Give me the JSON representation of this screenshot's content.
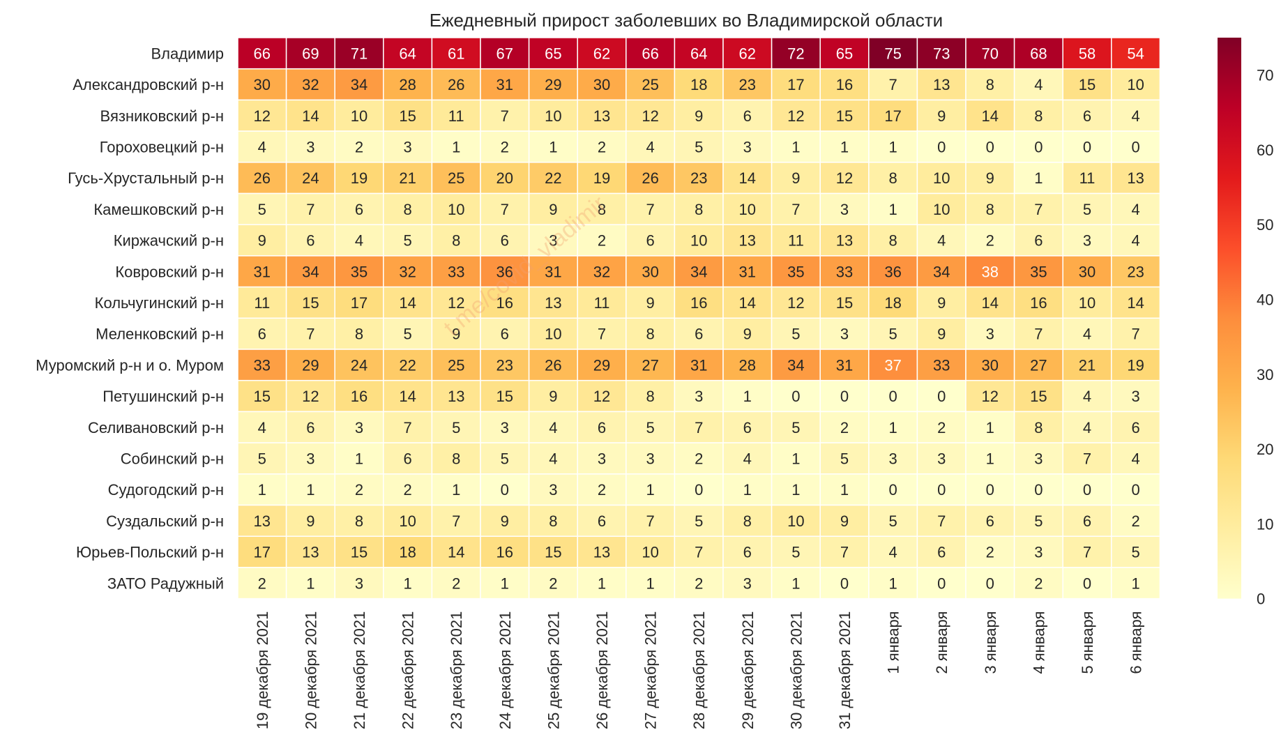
{
  "chart_data": {
    "type": "heatmap",
    "title": "Ежедневный прирост заболевших во Владимирской области",
    "watermark": "t.me/covid_vladimir",
    "rows": [
      "Владимир",
      "Александровский р-н",
      "Вязниковский р-н",
      "Гороховецкий р-н",
      "Гусь-Хрустальный р-н",
      "Камешковский р-н",
      "Киржачский р-н",
      "Ковровский р-н",
      "Кольчугинский р-н",
      "Меленковский р-н",
      "Муромский р-н и о. Муром",
      "Петушинский р-н",
      "Селивановский р-н",
      "Собинский р-н",
      "Судогодский р-н",
      "Суздальский р-н",
      "Юрьев-Польский р-н",
      "ЗАТО Радужный"
    ],
    "columns": [
      "19 декабря 2021",
      "20 декабря 2021",
      "21 декабря 2021",
      "22 декабря 2021",
      "23 декабря 2021",
      "24 декабря 2021",
      "25 декабря 2021",
      "26 декабря 2021",
      "27 декабря 2021",
      "28 декабря 2021",
      "29 декабря 2021",
      "30 декабря 2021",
      "31 декабря 2021",
      "1 января",
      "2 января",
      "3 января",
      "4 января",
      "5 января",
      "6 января"
    ],
    "values": [
      [
        66,
        69,
        71,
        64,
        61,
        67,
        65,
        62,
        66,
        64,
        62,
        72,
        65,
        75,
        73,
        70,
        68,
        58,
        54
      ],
      [
        30,
        32,
        34,
        28,
        26,
        31,
        29,
        30,
        25,
        18,
        23,
        17,
        16,
        7,
        13,
        8,
        4,
        15,
        10
      ],
      [
        12,
        14,
        10,
        15,
        11,
        7,
        10,
        13,
        12,
        9,
        6,
        12,
        15,
        17,
        9,
        14,
        8,
        6,
        4
      ],
      [
        4,
        3,
        2,
        3,
        1,
        2,
        1,
        2,
        4,
        5,
        3,
        1,
        1,
        1,
        0,
        0,
        0,
        0,
        0
      ],
      [
        26,
        24,
        19,
        21,
        25,
        20,
        22,
        19,
        26,
        23,
        14,
        9,
        12,
        8,
        10,
        9,
        1,
        11,
        13
      ],
      [
        5,
        7,
        6,
        8,
        10,
        7,
        9,
        8,
        7,
        8,
        10,
        7,
        3,
        1,
        10,
        8,
        7,
        5,
        4
      ],
      [
        9,
        6,
        4,
        5,
        8,
        6,
        3,
        2,
        6,
        10,
        13,
        11,
        13,
        8,
        4,
        2,
        6,
        3,
        4
      ],
      [
        31,
        34,
        35,
        32,
        33,
        36,
        31,
        32,
        30,
        34,
        31,
        35,
        33,
        36,
        34,
        38,
        35,
        30,
        23
      ],
      [
        11,
        15,
        17,
        14,
        12,
        16,
        13,
        11,
        9,
        16,
        14,
        12,
        15,
        18,
        9,
        14,
        16,
        10,
        14
      ],
      [
        6,
        7,
        8,
        5,
        9,
        6,
        10,
        7,
        8,
        6,
        9,
        5,
        3,
        5,
        9,
        3,
        7,
        4,
        7
      ],
      [
        33,
        29,
        24,
        22,
        25,
        23,
        26,
        29,
        27,
        31,
        28,
        34,
        31,
        37,
        33,
        30,
        27,
        21,
        19
      ],
      [
        15,
        12,
        16,
        14,
        13,
        15,
        9,
        12,
        8,
        3,
        1,
        0,
        0,
        0,
        0,
        12,
        15,
        4,
        3
      ],
      [
        4,
        6,
        3,
        7,
        5,
        3,
        4,
        6,
        5,
        7,
        6,
        5,
        2,
        1,
        2,
        1,
        8,
        4,
        6
      ],
      [
        5,
        3,
        1,
        6,
        8,
        5,
        4,
        3,
        3,
        2,
        4,
        1,
        5,
        3,
        3,
        1,
        3,
        7,
        4
      ],
      [
        1,
        1,
        2,
        2,
        1,
        0,
        3,
        2,
        1,
        0,
        1,
        1,
        1,
        0,
        0,
        0,
        0,
        0,
        0
      ],
      [
        13,
        9,
        8,
        10,
        7,
        9,
        8,
        6,
        7,
        5,
        8,
        10,
        9,
        5,
        7,
        6,
        5,
        6,
        2
      ],
      [
        17,
        13,
        15,
        18,
        14,
        16,
        15,
        13,
        10,
        7,
        6,
        5,
        7,
        4,
        6,
        2,
        3,
        7,
        5
      ],
      [
        2,
        1,
        3,
        1,
        2,
        1,
        2,
        1,
        1,
        2,
        3,
        1,
        0,
        1,
        0,
        0,
        2,
        0,
        1
      ]
    ],
    "vmin": 0,
    "vmax": 75,
    "colormap": "YlOrRd",
    "colorbar_ticks": [
      0,
      10,
      20,
      30,
      40,
      50,
      60,
      70
    ],
    "grid": false,
    "colorbar_position": "right"
  }
}
